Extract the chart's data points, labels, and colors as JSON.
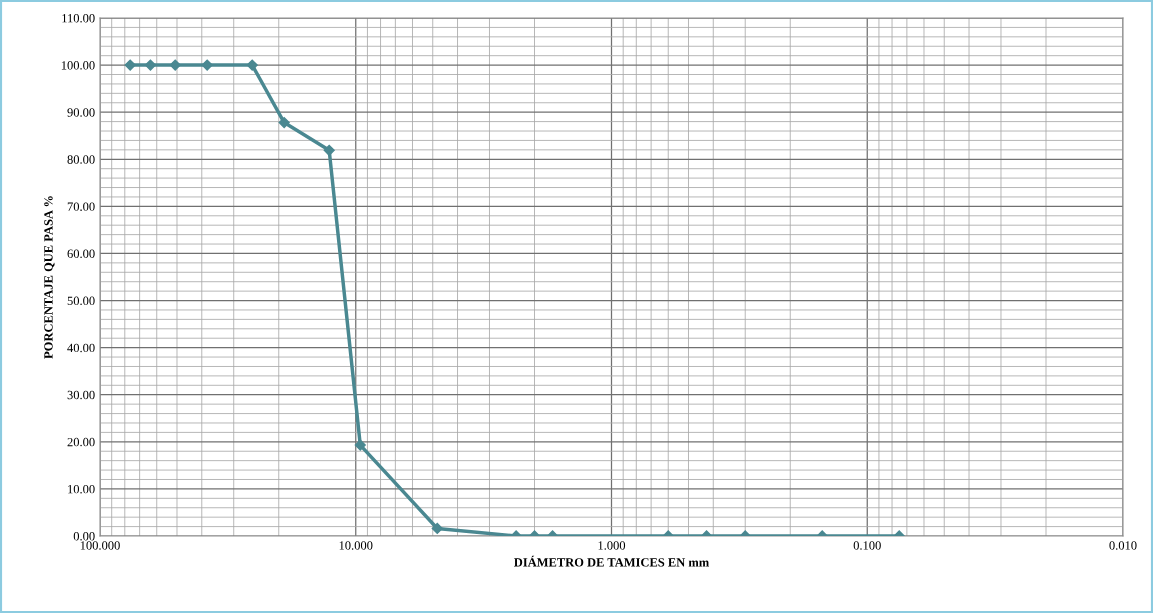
{
  "chart_data": {
    "type": "line",
    "xlabel": "DIÁMETRO DE TAMICES EN mm",
    "ylabel": "PORCENTAJE QUE PASA %",
    "log": "x",
    "grid": true,
    "marker": "diamond",
    "line_style": "solid",
    "xlim": [
      100,
      0.01
    ],
    "xticks": [
      {
        "value": 100,
        "label": "100.000"
      },
      {
        "value": 10,
        "label": "10.000"
      },
      {
        "value": 1,
        "label": "1.000"
      },
      {
        "value": 0.1,
        "label": "0.100"
      },
      {
        "value": 0.01,
        "label": "0.010"
      }
    ],
    "ylim": [
      0,
      110
    ],
    "yticks": [
      {
        "value": 0,
        "label": "0.00"
      },
      {
        "value": 10,
        "label": "10.00"
      },
      {
        "value": 20,
        "label": "20.00"
      },
      {
        "value": 30,
        "label": "30.00"
      },
      {
        "value": 40,
        "label": "40.00"
      },
      {
        "value": 50,
        "label": "50.00"
      },
      {
        "value": 60,
        "label": "60.00"
      },
      {
        "value": 70,
        "label": "70.00"
      },
      {
        "value": 80,
        "label": "80.00"
      },
      {
        "value": 90,
        "label": "90.00"
      },
      {
        "value": 100,
        "label": "100.00"
      },
      {
        "value": 110,
        "label": "110.00"
      }
    ],
    "x": [
      76.2,
      63.5,
      50.8,
      38.1,
      25.4,
      19.05,
      12.7,
      9.6,
      4.8,
      2.36,
      2.0,
      1.7,
      0.6,
      0.425,
      0.3,
      0.15,
      0.075
    ],
    "series": [
      {
        "color": "#4a8891",
        "values": [
          100,
          100,
          100,
          100,
          100,
          87.8,
          81.9,
          19.3,
          1.6,
          0,
          0,
          0,
          0,
          0,
          0,
          0,
          0
        ]
      }
    ]
  }
}
